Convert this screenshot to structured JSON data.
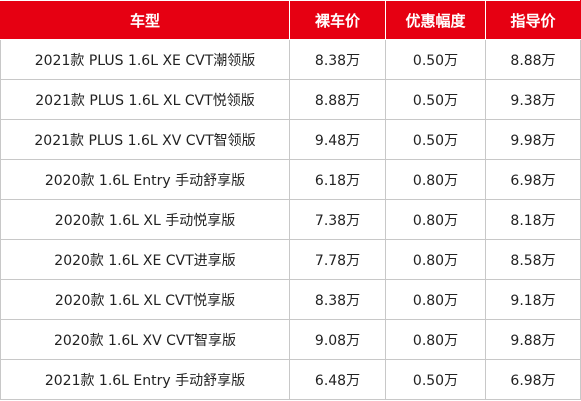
{
  "table": {
    "headers": [
      "车型",
      "裸车价",
      "优惠幅度",
      "指导价"
    ],
    "rows": [
      [
        "2021款 PLUS 1.6L XE CVT潮领版",
        "8.38万",
        "0.50万",
        "8.88万"
      ],
      [
        "2021款 PLUS 1.6L XL CVT悦领版",
        "8.88万",
        "0.50万",
        "9.38万"
      ],
      [
        "2021款 PLUS 1.6L XV CVT智领版",
        "9.48万",
        "0.50万",
        "9.98万"
      ],
      [
        "2020款 1.6L Entry 手动舒享版",
        "6.18万",
        "0.80万",
        "6.98万"
      ],
      [
        "2020款 1.6L XL 手动悦享版",
        "7.38万",
        "0.80万",
        "8.18万"
      ],
      [
        "2020款 1.6L XE CVT进享版",
        "7.78万",
        "0.80万",
        "8.58万"
      ],
      [
        "2020款 1.6L XL CVT悦享版",
        "8.38万",
        "0.80万",
        "9.18万"
      ],
      [
        "2020款 1.6L XV CVT智享版",
        "9.08万",
        "0.80万",
        "9.88万"
      ],
      [
        "2021款 1.6L Entry 手动舒享版",
        "6.48万",
        "0.50万",
        "6.98万"
      ]
    ]
  },
  "colors": {
    "header_background": "#e60012",
    "header_text": "#ffffff",
    "grid_line": "#c8c8c8"
  }
}
